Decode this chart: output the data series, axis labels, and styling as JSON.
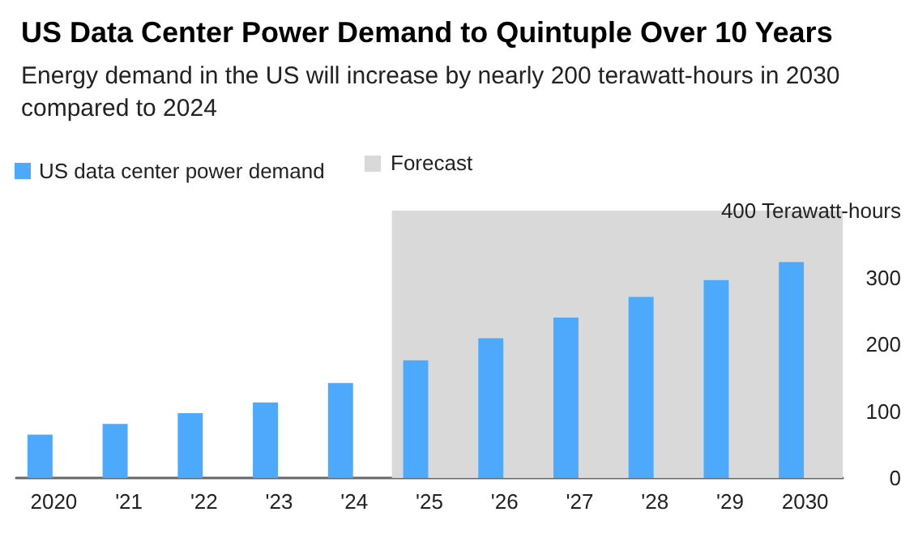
{
  "chart_data": {
    "type": "bar",
    "title": "US Data Center Power Demand to Quintuple Over 10 Years",
    "subtitle": "Energy demand in the US will increase by nearly 200 terawatt-hours in 2030 compared to 2024",
    "categories": [
      "2020",
      "'21",
      "'22",
      "'23",
      "'24",
      "'25",
      "'26",
      "'27",
      "'28",
      "'29",
      "2030"
    ],
    "series": [
      {
        "name": "US data center power demand",
        "color": "#4da9fb",
        "values": [
          65,
          81,
          97,
          113,
          142,
          176,
          209,
          240,
          271,
          296,
          323
        ]
      }
    ],
    "ylim": [
      0,
      400
    ],
    "yticks": [
      0,
      100,
      200,
      300,
      {
        "value": 400,
        "label": "400 Terawatt-hours"
      }
    ],
    "bands": [
      {
        "axis": "x",
        "from": "'25",
        "to": "2030",
        "label": "Forecast",
        "color": "#d9d9d9"
      }
    ],
    "grid": false,
    "legend": "top left"
  }
}
